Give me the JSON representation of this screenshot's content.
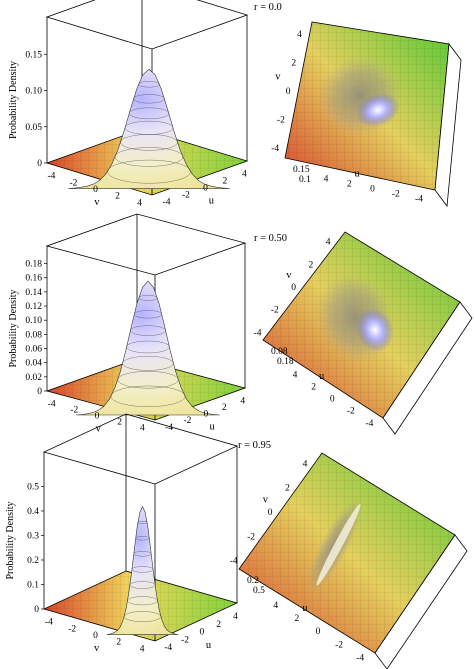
{
  "chart_data": [
    {
      "type": "surface",
      "panel_label": "r = 0.0",
      "rho": 0.0,
      "zlabel": "Probability Density",
      "xlabel": "u",
      "ylabel": "v",
      "x_ticks": [
        "-4",
        "-2",
        "0",
        "2",
        "4"
      ],
      "y_ticks": [
        "-4",
        "-2",
        "0",
        "2",
        "4"
      ],
      "z_ticks": [
        "0",
        "0.05",
        "0.10",
        "0.15"
      ],
      "zlim": [
        0,
        0.16
      ],
      "top_view": {
        "u_ticks": [
          "4",
          "2",
          "0",
          "-2",
          "-4"
        ],
        "v_ticks": [
          "4",
          "2",
          "0",
          "-2",
          "-4"
        ],
        "z_ticks": [
          "0.15",
          "0.1"
        ]
      }
    },
    {
      "type": "surface",
      "panel_label": "r = 0.50",
      "rho": 0.5,
      "zlabel": "Probability Density",
      "xlabel": "u",
      "ylabel": "v",
      "x_ticks": [
        "-4",
        "-2",
        "0",
        "2",
        "4"
      ],
      "y_ticks": [
        "-4",
        "-2",
        "0",
        "2",
        "4"
      ],
      "z_ticks": [
        "0",
        "0.02",
        "0.04",
        "0.06",
        "0.08",
        "0.10",
        "0.12",
        "0.14",
        "0.16",
        "0.18"
      ],
      "zlim": [
        0,
        0.185
      ],
      "top_view": {
        "u_ticks": [
          "4",
          "2",
          "0",
          "-2",
          "-4"
        ],
        "v_ticks": [
          "4",
          "2",
          "0",
          "-2",
          "-4"
        ],
        "z_ticks": [
          "0.08",
          "0.18"
        ]
      }
    },
    {
      "type": "surface",
      "panel_label": "r = 0.95",
      "rho": 0.95,
      "zlabel": "Probability Density",
      "xlabel": "u",
      "ylabel": "v",
      "x_ticks": [
        "-4",
        "-2",
        "0",
        "2",
        "4"
      ],
      "y_ticks": [
        "-4",
        "-2",
        "0",
        "2",
        "4"
      ],
      "z_ticks": [
        "0",
        "0.1",
        "0.2",
        "0.3",
        "0.4",
        "0.5"
      ],
      "zlim": [
        0,
        0.51
      ],
      "top_view": {
        "u_ticks": [
          "4",
          "2",
          "0",
          "-2",
          "-4"
        ],
        "v_ticks": [
          "4",
          "2",
          "0",
          "-2",
          "-4"
        ],
        "z_ticks": [
          "0.2",
          "0.5"
        ]
      }
    }
  ]
}
